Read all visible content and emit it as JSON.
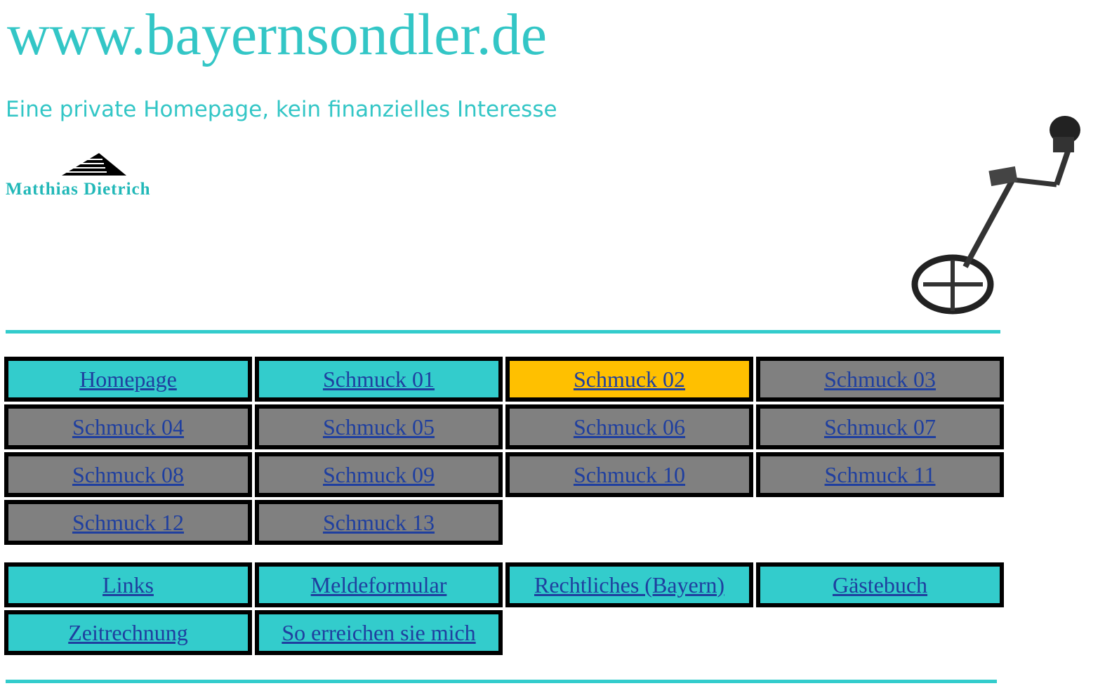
{
  "header": {
    "title": "www.bayernsondler.de",
    "subtitle": "Eine private Homepage, kein finanzielles Interesse",
    "logo_text": "Matthias Dietrich"
  },
  "menu": [
    {
      "label": "Homepage",
      "color": "#33cccc"
    },
    {
      "label": "Schmuck 01",
      "color": "#33cccc"
    },
    {
      "label": "Schmuck 02",
      "color": "#ffc000"
    },
    {
      "label": "Schmuck 03",
      "color": "#808080"
    },
    {
      "label": "Schmuck 04",
      "color": "#808080"
    },
    {
      "label": "Schmuck 05",
      "color": "#808080"
    },
    {
      "label": "Schmuck 06",
      "color": "#808080"
    },
    {
      "label": "Schmuck 07",
      "color": "#808080"
    },
    {
      "label": "Schmuck 08",
      "color": "#808080"
    },
    {
      "label": "Schmuck 09",
      "color": "#808080"
    },
    {
      "label": "Schmuck 10",
      "color": "#808080"
    },
    {
      "label": "Schmuck 11",
      "color": "#808080"
    },
    {
      "label": "Schmuck 12",
      "color": "#808080"
    },
    {
      "label": "Schmuck 13",
      "color": "#808080"
    }
  ],
  "links": [
    {
      "label": "Links",
      "color": "#33cccc"
    },
    {
      "label": "Meldeformular",
      "color": "#33cccc"
    },
    {
      "label": "Rechtliches (Bayern)",
      "color": "#33cccc"
    },
    {
      "label": "Gästebuch",
      "color": "#33cccc"
    },
    {
      "label": "Zeitrechnung",
      "color": "#33cccc"
    },
    {
      "label": "So erreichen sie mich",
      "color": "#33cccc"
    }
  ]
}
